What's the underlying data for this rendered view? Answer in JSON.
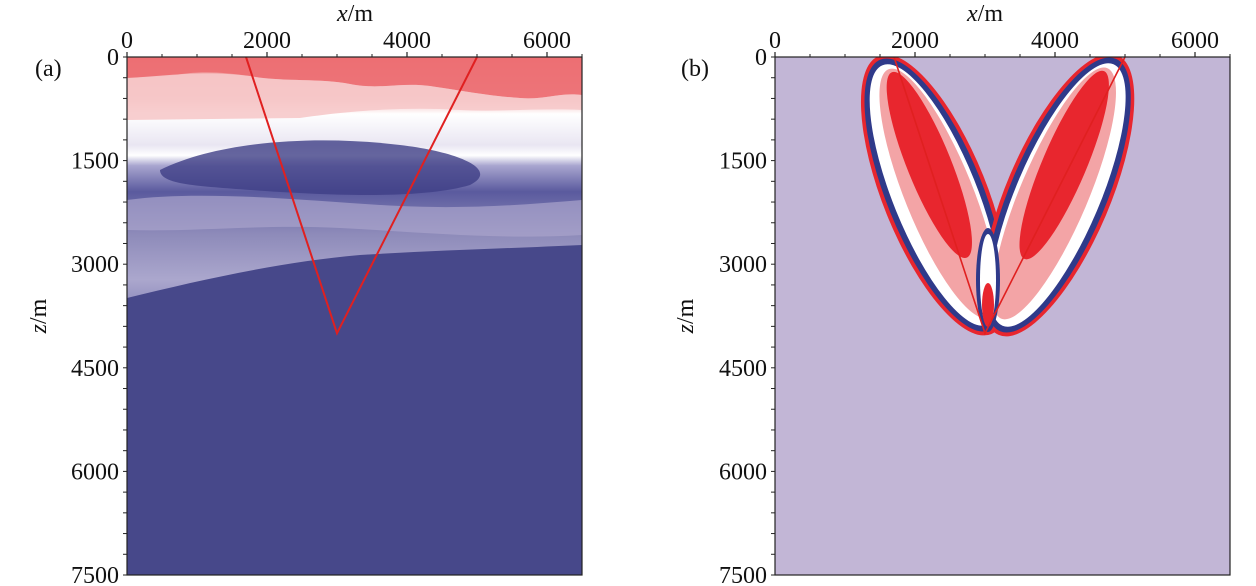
{
  "chart_data": [
    {
      "type": "heatmap",
      "panel_label": "(a)",
      "xlabel_var": "x",
      "xlabel_unit": "/m",
      "ylabel_var": "z",
      "ylabel_unit": "/m",
      "xlim": [
        0,
        6500
      ],
      "ylim": [
        0,
        7500
      ],
      "x_ticks": [
        0,
        2000,
        4000,
        6000
      ],
      "y_ticks": [
        0,
        1500,
        3000,
        4500,
        6000,
        7500
      ],
      "colors": {
        "positive": "#e8262e",
        "mid": "#ffffff",
        "negative": "#2f3a8a",
        "background": "#47488a"
      },
      "overlay_path": {
        "x": [
          1700,
          3000,
          5000
        ],
        "z": [
          0,
          4000,
          0
        ],
        "color": "#e02020"
      }
    },
    {
      "type": "heatmap",
      "panel_label": "(b)",
      "xlabel_var": "x",
      "xlabel_unit": "/m",
      "ylabel_var": "z",
      "ylabel_unit": "/m",
      "xlim": [
        0,
        6500
      ],
      "ylim": [
        0,
        7500
      ],
      "x_ticks": [
        0,
        2000,
        4000,
        6000
      ],
      "y_ticks": [
        0,
        1500,
        3000,
        4500,
        6000,
        7500
      ],
      "colors": {
        "positive": "#e8262e",
        "mid": "#ffffff",
        "negative": "#2f3a8a",
        "background": "#c2b6d6"
      },
      "overlay_path": {
        "x": [
          1700,
          3000,
          5000
        ],
        "z": [
          0,
          4000,
          0
        ],
        "color": "#e02020"
      }
    }
  ]
}
